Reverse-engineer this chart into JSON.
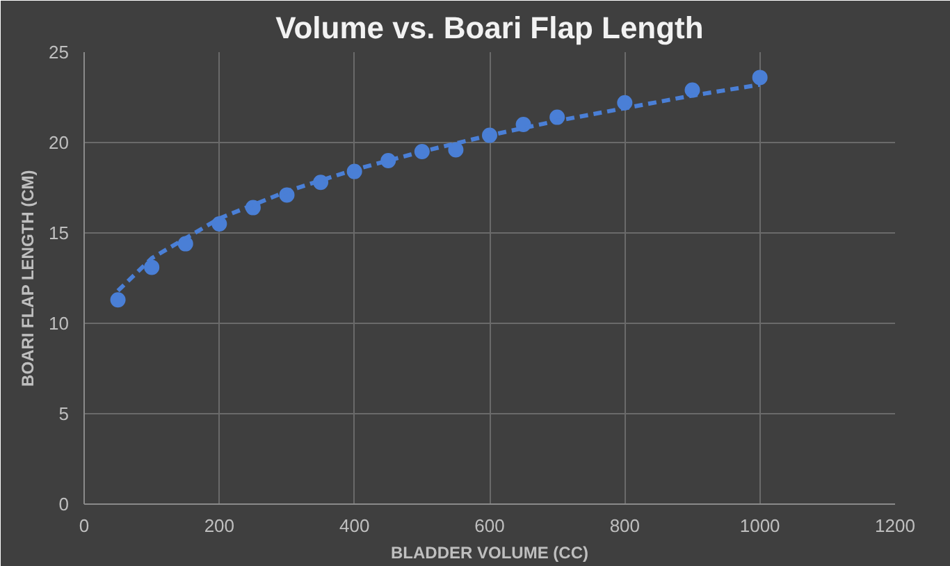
{
  "chart_data": {
    "type": "scatter",
    "title": "Volume vs. Boari Flap Length",
    "xlabel": "BLADDER VOLUME (CC)",
    "ylabel": "BOARI FLAP LENGTH (CM)",
    "xlim": [
      0,
      1200
    ],
    "xticks": [
      0,
      200,
      400,
      600,
      800,
      1000,
      1200
    ],
    "ylim": [
      0,
      25
    ],
    "yticks": [
      0,
      5,
      10,
      15,
      20,
      25
    ],
    "grid": true,
    "marker": "circle",
    "series": [
      {
        "color": "#4a7fd6",
        "x": [
          50,
          100,
          150,
          200,
          250,
          300,
          350,
          400,
          450,
          500,
          550,
          600,
          650,
          700,
          800,
          900,
          1000
        ],
        "values": [
          11.3,
          13.1,
          14.4,
          15.5,
          16.4,
          17.1,
          17.8,
          18.4,
          19.0,
          19.5,
          19.6,
          20.4,
          21.0,
          21.4,
          22.2,
          22.9,
          23.6
        ]
      },
      {
        "type": "line",
        "color": "#4a7fd6",
        "line_style": "dashed",
        "marker": "none",
        "x": [
          50,
          100,
          200,
          300,
          400,
          500,
          600,
          700,
          800,
          900,
          1000
        ],
        "values": [
          11.8,
          13.6,
          15.8,
          17.3,
          18.5,
          19.5,
          20.4,
          21.2,
          21.9,
          22.6,
          23.2
        ]
      }
    ]
  }
}
